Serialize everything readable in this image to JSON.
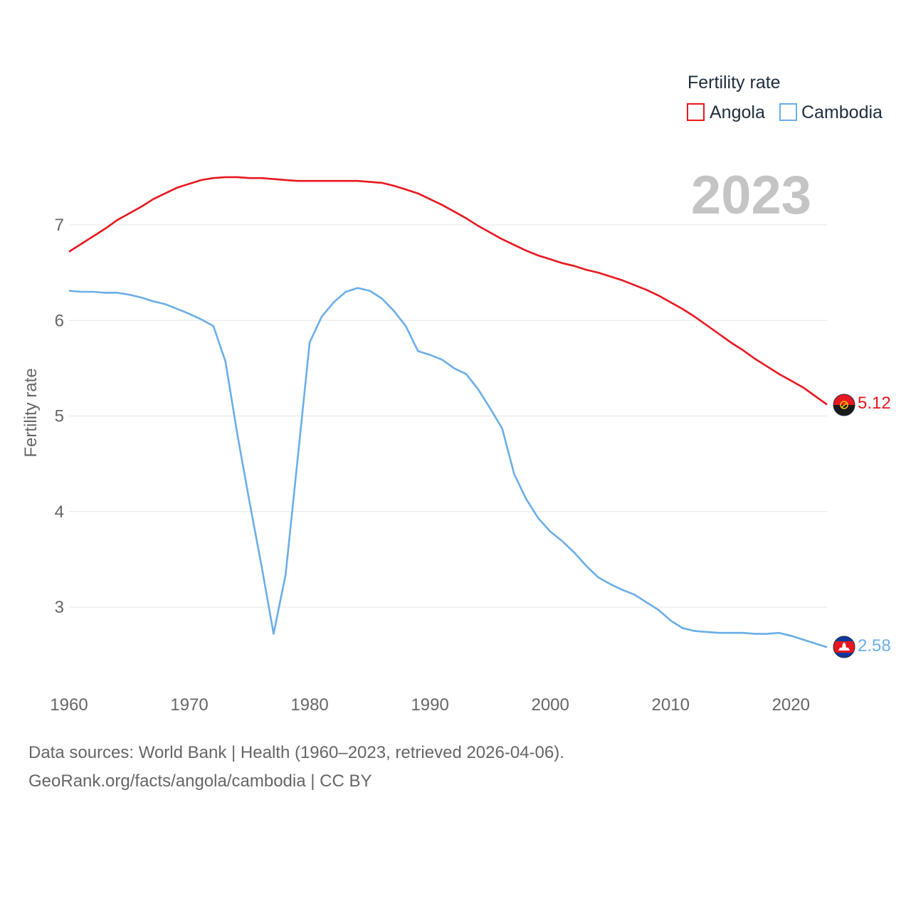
{
  "chart_data": {
    "type": "line",
    "title": "",
    "year_label": "2023",
    "ylabel": "Fertility rate",
    "xlabel": "",
    "xlim": [
      1960,
      2023
    ],
    "ylim": [
      2.4,
      7.65
    ],
    "yticks": [
      3,
      4,
      5,
      6,
      7
    ],
    "xticks": [
      1960,
      1970,
      1980,
      1990,
      2000,
      2010,
      2020
    ],
    "legend": {
      "title": "Fertility rate",
      "position": "top-right"
    },
    "grid": true,
    "x": [
      1960,
      1961,
      1962,
      1963,
      1964,
      1965,
      1966,
      1967,
      1968,
      1969,
      1970,
      1971,
      1972,
      1973,
      1974,
      1975,
      1976,
      1977,
      1978,
      1979,
      1980,
      1981,
      1982,
      1983,
      1984,
      1985,
      1986,
      1987,
      1988,
      1989,
      1990,
      1991,
      1992,
      1993,
      1994,
      1995,
      1996,
      1997,
      1998,
      1999,
      2000,
      2001,
      2002,
      2003,
      2004,
      2005,
      2006,
      2007,
      2008,
      2009,
      2010,
      2011,
      2012,
      2013,
      2014,
      2015,
      2016,
      2017,
      2018,
      2019,
      2020,
      2021,
      2022,
      2023
    ],
    "series": [
      {
        "name": "Angola",
        "color": "#e8171f",
        "end_label": "5.12",
        "flag": "angola-flag",
        "values": [
          6.72,
          6.8,
          6.88,
          6.96,
          7.05,
          7.12,
          7.19,
          7.27,
          7.33,
          7.39,
          7.43,
          7.47,
          7.49,
          7.5,
          7.5,
          7.49,
          7.49,
          7.48,
          7.47,
          7.46,
          7.46,
          7.46,
          7.46,
          7.46,
          7.46,
          7.45,
          7.44,
          7.41,
          7.37,
          7.33,
          7.27,
          7.21,
          7.14,
          7.07,
          6.99,
          6.92,
          6.85,
          6.79,
          6.73,
          6.68,
          6.64,
          6.6,
          6.57,
          6.53,
          6.5,
          6.46,
          6.42,
          6.37,
          6.32,
          6.26,
          6.19,
          6.12,
          6.04,
          5.95,
          5.86,
          5.77,
          5.69,
          5.6,
          5.52,
          5.44,
          5.37,
          5.3,
          5.21,
          5.12
        ]
      },
      {
        "name": "Cambodia",
        "color": "#6aaee8",
        "end_label": "2.58",
        "flag": "cambodia-flag",
        "values": [
          6.31,
          6.3,
          6.3,
          6.29,
          6.29,
          6.27,
          6.24,
          6.2,
          6.17,
          6.12,
          6.07,
          6.01,
          5.94,
          5.57,
          4.8,
          4.1,
          3.43,
          2.72,
          3.34,
          4.55,
          5.77,
          6.04,
          6.19,
          6.3,
          6.34,
          6.31,
          6.23,
          6.1,
          5.94,
          5.68,
          5.64,
          5.59,
          5.5,
          5.44,
          5.28,
          5.08,
          4.87,
          4.39,
          4.13,
          3.93,
          3.79,
          3.69,
          3.57,
          3.43,
          3.31,
          3.24,
          3.18,
          3.13,
          3.05,
          2.97,
          2.86,
          2.78,
          2.75,
          2.74,
          2.73,
          2.73,
          2.73,
          2.72,
          2.72,
          2.73,
          2.7,
          2.66,
          2.62,
          2.58
        ]
      }
    ]
  },
  "footer": {
    "line1": "Data sources: World Bank | Health (1960–2023, retrieved 2026-04-06).",
    "line2": "GeoRank.org/facts/angola/cambodia | CC BY"
  }
}
